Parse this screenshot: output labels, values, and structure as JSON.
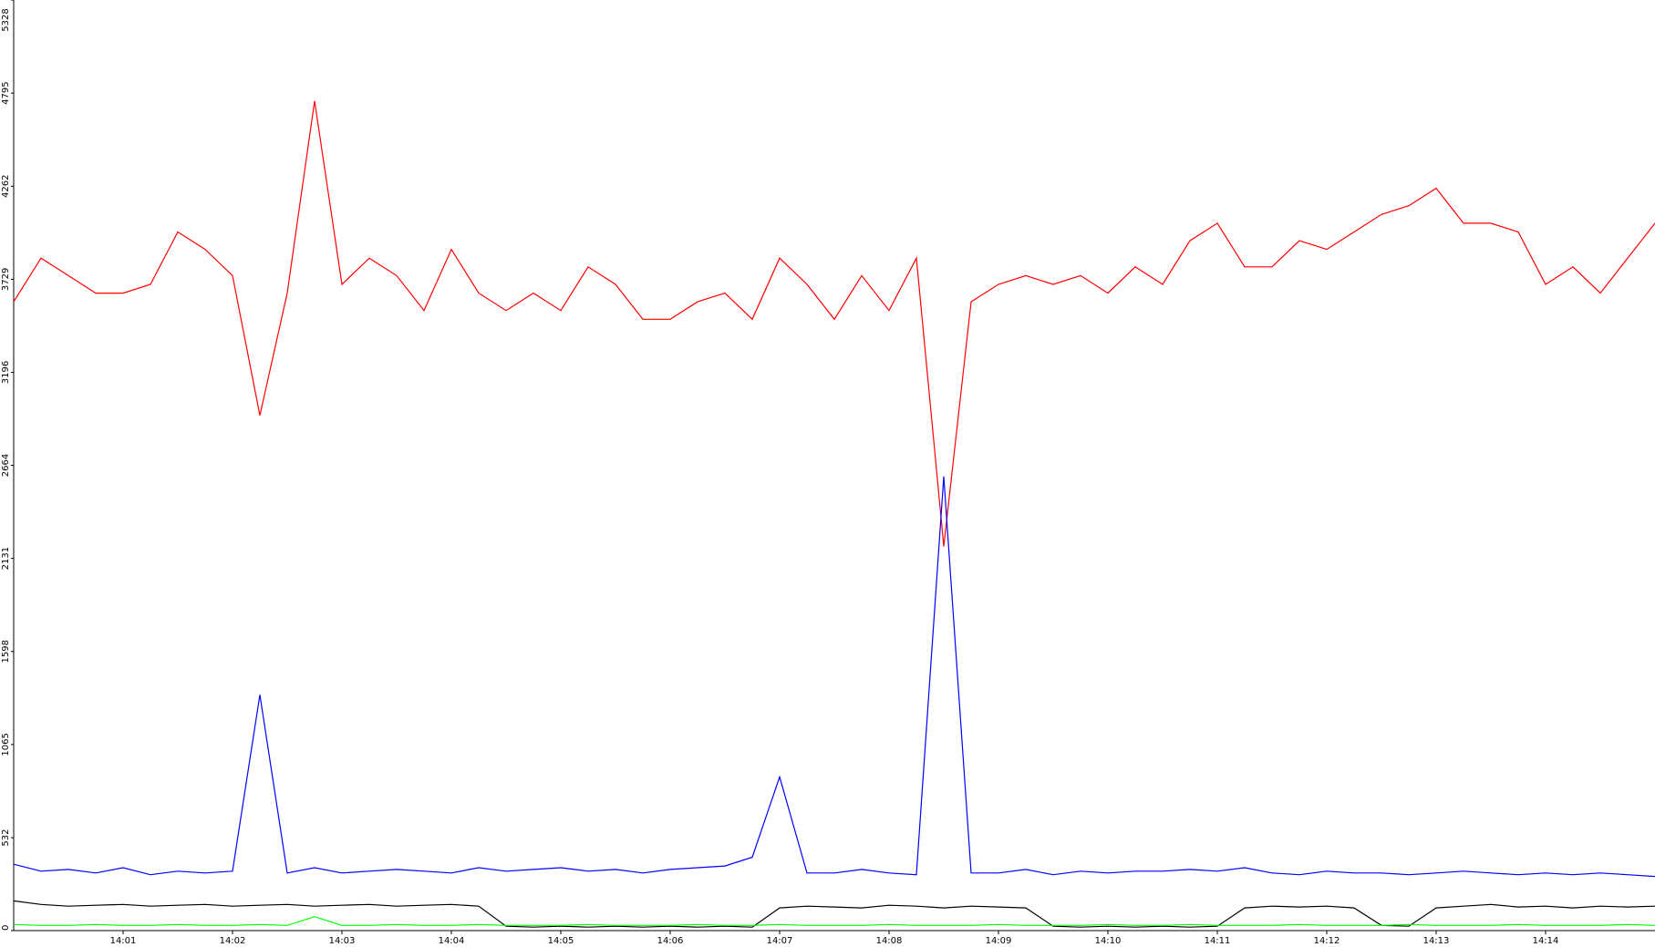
{
  "chart_data": {
    "type": "line",
    "x": [
      "14:00:00",
      "14:00:15",
      "14:00:30",
      "14:00:45",
      "14:01:00",
      "14:01:15",
      "14:01:30",
      "14:01:45",
      "14:02:00",
      "14:02:15",
      "14:02:30",
      "14:02:45",
      "14:03:00",
      "14:03:15",
      "14:03:30",
      "14:03:45",
      "14:04:00",
      "14:04:15",
      "14:04:30",
      "14:04:45",
      "14:05:00",
      "14:05:15",
      "14:05:30",
      "14:05:45",
      "14:06:00",
      "14:06:15",
      "14:06:30",
      "14:06:45",
      "14:07:00",
      "14:07:15",
      "14:07:30",
      "14:07:45",
      "14:08:00",
      "14:08:15",
      "14:08:30",
      "14:08:45",
      "14:09:00",
      "14:09:15",
      "14:09:30",
      "14:09:45",
      "14:10:00",
      "14:10:15",
      "14:10:30",
      "14:10:45",
      "14:11:00",
      "14:11:15",
      "14:11:30",
      "14:11:45",
      "14:12:00",
      "14:12:15",
      "14:12:30",
      "14:12:45",
      "14:13:00",
      "14:13:15",
      "14:13:30",
      "14:13:45",
      "14:14:00",
      "14:14:15",
      "14:14:30",
      "14:14:45",
      "14:15:00"
    ],
    "series": [
      {
        "color": "#ff0000",
        "values": [
          3600,
          3850,
          3750,
          3650,
          3650,
          3700,
          4000,
          3900,
          3750,
          2950,
          3650,
          4750,
          3700,
          3850,
          3750,
          3550,
          3900,
          3650,
          3550,
          3650,
          3550,
          3800,
          3700,
          3500,
          3500,
          3600,
          3650,
          3500,
          3850,
          3700,
          3500,
          3750,
          3550,
          3850,
          2200,
          3600,
          3700,
          3750,
          3700,
          3750,
          3650,
          3800,
          3700,
          3950,
          4050,
          3800,
          3800,
          3950,
          3900,
          4000,
          4100,
          4150,
          4250,
          4050,
          4050,
          4000,
          3700,
          3800,
          3650,
          3850,
          4050
        ]
      },
      {
        "color": "#0000ff",
        "values": [
          380,
          340,
          350,
          330,
          360,
          320,
          340,
          330,
          340,
          1350,
          330,
          360,
          330,
          340,
          350,
          340,
          330,
          360,
          340,
          350,
          360,
          340,
          350,
          330,
          350,
          360,
          370,
          420,
          880,
          330,
          330,
          350,
          330,
          320,
          2600,
          330,
          330,
          350,
          320,
          340,
          330,
          340,
          340,
          350,
          340,
          360,
          330,
          320,
          340,
          330,
          330,
          320,
          330,
          340,
          330,
          320,
          330,
          320,
          330,
          320,
          310
        ]
      },
      {
        "color": "#000000",
        "values": [
          170,
          150,
          140,
          145,
          150,
          140,
          145,
          150,
          140,
          145,
          150,
          140,
          145,
          150,
          140,
          145,
          150,
          140,
          25,
          20,
          25,
          20,
          25,
          20,
          25,
          20,
          25,
          20,
          130,
          140,
          135,
          130,
          145,
          140,
          130,
          140,
          135,
          130,
          25,
          20,
          25,
          20,
          25,
          20,
          25,
          130,
          140,
          135,
          140,
          130,
          30,
          25,
          130,
          140,
          150,
          135,
          140,
          130,
          140,
          135,
          140
        ]
      },
      {
        "color": "#00ff00",
        "values": [
          35,
          30,
          30,
          35,
          30,
          30,
          35,
          30,
          30,
          35,
          30,
          80,
          30,
          30,
          35,
          30,
          30,
          35,
          30,
          30,
          30,
          35,
          30,
          30,
          30,
          35,
          30,
          30,
          35,
          30,
          30,
          30,
          35,
          30,
          30,
          30,
          35,
          30,
          30,
          30,
          35,
          30,
          30,
          35,
          30,
          30,
          30,
          35,
          30,
          30,
          30,
          35,
          30,
          30,
          30,
          35,
          30,
          30,
          30,
          35,
          30
        ]
      }
    ],
    "xlim": [
      "14:00:00",
      "14:15:00"
    ],
    "xticks": [
      {
        "value": "14:01:00",
        "label": "14:01"
      },
      {
        "value": "14:02:00",
        "label": "14:02"
      },
      {
        "value": "14:03:00",
        "label": "14:03"
      },
      {
        "value": "14:04:00",
        "label": "14:04"
      },
      {
        "value": "14:05:00",
        "label": "14:05"
      },
      {
        "value": "14:06:00",
        "label": "14:06"
      },
      {
        "value": "14:07:00",
        "label": "14:07"
      },
      {
        "value": "14:08:00",
        "label": "14:08"
      },
      {
        "value": "14:09:00",
        "label": "14:09"
      },
      {
        "value": "14:10:00",
        "label": "14:10"
      },
      {
        "value": "14:11:00",
        "label": "14:11"
      },
      {
        "value": "14:12:00",
        "label": "14:12"
      },
      {
        "value": "14:13:00",
        "label": "14:13"
      },
      {
        "value": "14:14:00",
        "label": "14:14"
      }
    ],
    "ylim": [
      0,
      5328
    ],
    "yticks": [
      0,
      532,
      1065,
      1598,
      2131,
      2664,
      3196,
      3729,
      4262,
      4795,
      5328
    ]
  }
}
